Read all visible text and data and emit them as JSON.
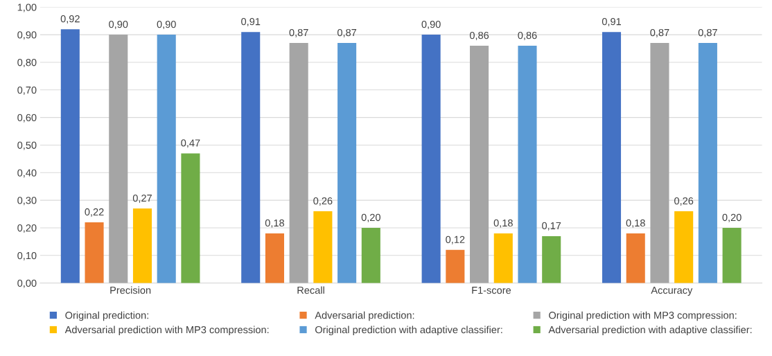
{
  "chart_data": {
    "type": "bar",
    "categories": [
      "Precision",
      "Recall",
      "F1-score",
      "Accuracy"
    ],
    "series": [
      {
        "name": "Original prediction:",
        "color": "#4472c4",
        "values": [
          0.92,
          0.91,
          0.9,
          0.91
        ],
        "value_labels": [
          "0,92",
          "0,91",
          "0,90",
          "0,91"
        ]
      },
      {
        "name": "Adversarial prediction:",
        "color": "#ed7d31",
        "values": [
          0.22,
          0.18,
          0.12,
          0.18
        ],
        "value_labels": [
          "0,22",
          "0,18",
          "0,12",
          "0,18"
        ]
      },
      {
        "name": "Original prediction with MP3 compression:",
        "color": "#a5a5a5",
        "values": [
          0.9,
          0.87,
          0.86,
          0.87
        ],
        "value_labels": [
          "0,90",
          "0,87",
          "0,86",
          "0,87"
        ]
      },
      {
        "name": "Adversarial prediction with MP3 compression:",
        "color": "#ffc000",
        "values": [
          0.27,
          0.26,
          0.18,
          0.26
        ],
        "value_labels": [
          "0,27",
          "0,26",
          "0,18",
          "0,26"
        ]
      },
      {
        "name": "Original prediction with adaptive classifier:",
        "color": "#5b9bd5",
        "values": [
          0.9,
          0.87,
          0.86,
          0.87
        ],
        "value_labels": [
          "0,90",
          "0,87",
          "0,86",
          "0,87"
        ]
      },
      {
        "name": "Adversarial prediction with adaptive classifier:",
        "color": "#70ad47",
        "values": [
          0.47,
          0.2,
          0.17,
          0.2
        ],
        "value_labels": [
          "0,47",
          "0,20",
          "0,17",
          "0,20"
        ]
      }
    ],
    "ylim": [
      0,
      1.0
    ],
    "yticks": [
      {
        "value": 0,
        "label": "0,00"
      },
      {
        "value": 0.1,
        "label": "0,10"
      },
      {
        "value": 0.2,
        "label": "0,20"
      },
      {
        "value": 0.3,
        "label": "0,30"
      },
      {
        "value": 0.4,
        "label": "0,40"
      },
      {
        "value": 0.5,
        "label": "0,50"
      },
      {
        "value": 0.6,
        "label": "0,60"
      },
      {
        "value": 0.7,
        "label": "0,70"
      },
      {
        "value": 0.8,
        "label": "0,80"
      },
      {
        "value": 0.9,
        "label": "0,90"
      },
      {
        "value": 1.0,
        "label": "1,00"
      }
    ],
    "grid": "y",
    "legend": "bottom"
  }
}
